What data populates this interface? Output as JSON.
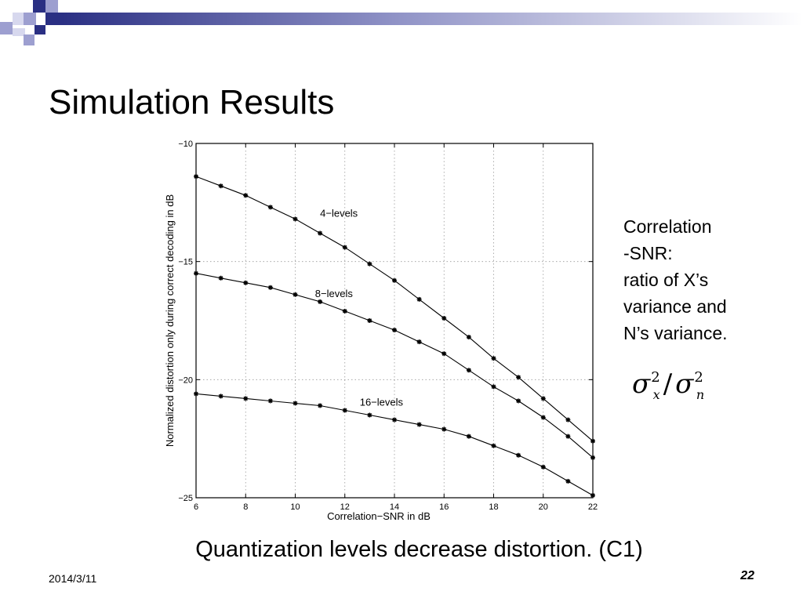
{
  "slide": {
    "title": "Simulation Results",
    "caption": "Quantization levels decrease distortion. (C1)",
    "date": "2014/3/11",
    "page_number": "22",
    "accent_colors": {
      "navy": "#2a2f83",
      "lavender": "#9d9fd0",
      "light_lavender": "#d7d8ee"
    }
  },
  "side_note": {
    "lines": [
      "Correlation",
      "-SNR:",
      "ratio of X’s",
      "variance and",
      "N’s variance."
    ]
  },
  "formula": {
    "numerator": "σ",
    "numerator_exp": "2",
    "numerator_sub": "x",
    "slash": "/",
    "denominator": "σ",
    "denominator_exp": "2",
    "denominator_sub": "n"
  },
  "chart_data": {
    "type": "line",
    "xlabel": "Correlation−SNR in dB",
    "ylabel": "Normalized distortion only during correct decoding in dB",
    "xlim": [
      6,
      22
    ],
    "ylim": [
      -25,
      -10
    ],
    "xticks": [
      6,
      8,
      10,
      12,
      14,
      16,
      18,
      20,
      22
    ],
    "yticks": [
      -10,
      -15,
      -20,
      -25
    ],
    "grid": true,
    "x": [
      6,
      7,
      8,
      9,
      10,
      11,
      12,
      13,
      14,
      15,
      16,
      17,
      18,
      19,
      20,
      21,
      22
    ],
    "series": [
      {
        "name": "4−levels",
        "values": [
          -11.4,
          -11.8,
          -12.2,
          -12.7,
          -13.2,
          -13.8,
          -14.4,
          -15.1,
          -15.8,
          -16.6,
          -17.4,
          -18.2,
          -19.1,
          -19.9,
          -20.8,
          -21.7,
          -22.6
        ]
      },
      {
        "name": "8−levels",
        "values": [
          -15.5,
          -15.7,
          -15.9,
          -16.1,
          -16.4,
          -16.7,
          -17.1,
          -17.5,
          -17.9,
          -18.4,
          -18.9,
          -19.6,
          -20.3,
          -20.9,
          -21.6,
          -22.4,
          -23.3
        ]
      },
      {
        "name": "16−levels",
        "values": [
          -20.6,
          -20.7,
          -20.8,
          -20.9,
          -21.0,
          -21.1,
          -21.3,
          -21.5,
          -21.7,
          -21.9,
          -22.1,
          -22.4,
          -22.8,
          -23.2,
          -23.7,
          -24.3,
          -24.9
        ]
      }
    ]
  }
}
